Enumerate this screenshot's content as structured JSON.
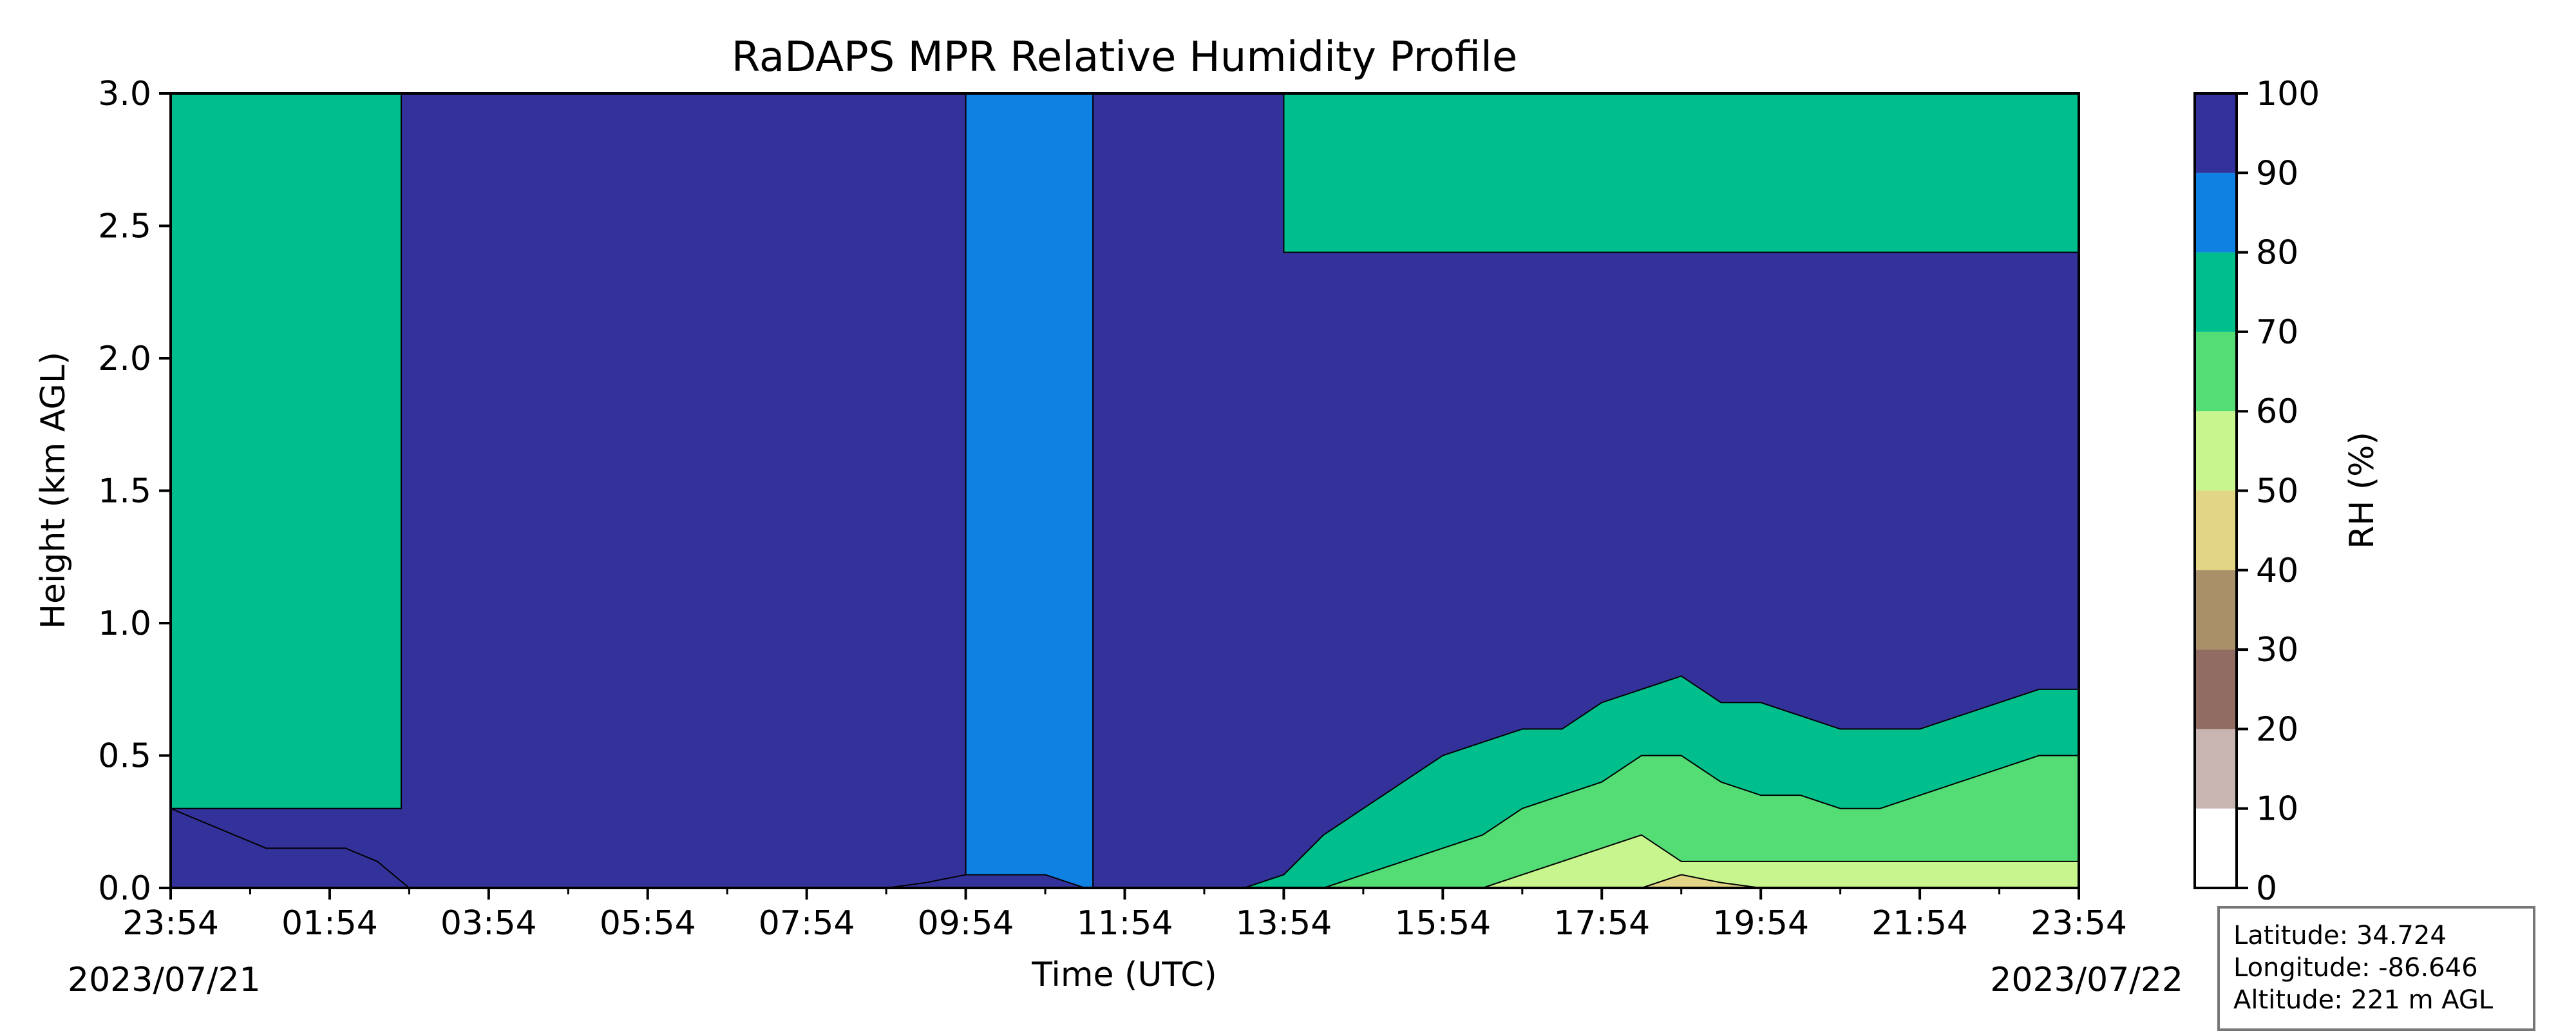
{
  "chart_data": {
    "type": "heatmap",
    "title": "RaDAPS MPR Relative Humidity Profile",
    "xlabel": "Time (UTC)",
    "ylabel": "Height (km AGL)",
    "x_tick_labels": [
      "23:54",
      "01:54",
      "03:54",
      "05:54",
      "07:54",
      "09:54",
      "11:54",
      "13:54",
      "15:54",
      "17:54",
      "19:54",
      "21:54",
      "23:54"
    ],
    "start_date": "2023/07/21",
    "end_date": "2023/07/22",
    "ylim": [
      0,
      3.0
    ],
    "y_ticks": [
      0.0,
      0.5,
      1.0,
      1.5,
      2.0,
      2.5,
      3.0
    ],
    "y_tick_labels": [
      "0.0",
      "0.5",
      "1.0",
      "1.5",
      "2.0",
      "2.5",
      "3.0"
    ],
    "colorbar": {
      "label": "RH (%)",
      "levels": [
        0,
        10,
        20,
        30,
        40,
        50,
        60,
        70,
        80,
        90,
        100
      ],
      "tick_labels": [
        "0",
        "10",
        "20",
        "30",
        "40",
        "50",
        "60",
        "70",
        "80",
        "90",
        "100"
      ],
      "colors": [
        "#ffffff",
        "#c8b4b0",
        "#906c62",
        "#aa9069",
        "#e2d586",
        "#c9f58e",
        "#54dc75",
        "#00bf8c",
        "#0e81e2",
        "#33329a"
      ]
    },
    "x_hours": [
      0,
      0.8,
      1.2,
      1.6,
      2.2,
      2.6,
      3.0,
      3.5,
      4.0,
      5.0,
      6.0,
      7.0,
      8.0,
      9.0,
      9.5,
      10.0,
      10.5,
      11.0,
      11.5,
      12.0,
      12.5,
      13.0,
      13.5,
      14.0,
      14.5,
      15.0,
      15.5,
      16.0,
      16.5,
      17.0,
      17.5,
      18.0,
      18.5,
      19.0,
      19.5,
      20.0,
      20.5,
      21.0,
      21.5,
      22.0,
      22.5,
      23.0,
      23.5,
      24.0
    ],
    "series": [
      {
        "values": [
          0.3,
          0.2,
          0.15,
          0.15,
          0.15,
          0.1,
          0.0,
          0,
          0,
          0,
          0,
          0,
          0,
          0,
          0.02,
          0.05,
          0.05,
          0.05,
          0,
          0,
          0,
          0,
          0,
          0,
          0,
          0,
          0,
          0,
          0,
          0,
          0,
          0,
          0,
          0,
          0,
          0,
          0,
          0,
          0,
          0,
          0,
          0,
          0,
          0
        ]
      },
      {
        "values": [
          0,
          0,
          0,
          0,
          0,
          0,
          0,
          0,
          0,
          0,
          0,
          0,
          0,
          0,
          0,
          0,
          0,
          0,
          0,
          0,
          0,
          0,
          0,
          0.05,
          0.2,
          0.3,
          0.4,
          0.5,
          0.55,
          0.6,
          0.6,
          0.7,
          0.75,
          0.8,
          0.7,
          0.7,
          0.65,
          0.6,
          0.6,
          0.6,
          0.65,
          0.7,
          0.75,
          0.75
        ]
      },
      {
        "values": [
          0,
          0,
          0,
          0,
          0,
          0,
          0,
          0,
          0,
          0,
          0,
          0,
          0,
          0,
          0,
          0,
          0,
          0,
          0,
          0,
          0,
          0,
          0,
          0,
          0,
          0.05,
          0.1,
          0.15,
          0.2,
          0.3,
          0.35,
          0.4,
          0.5,
          0.5,
          0.4,
          0.35,
          0.35,
          0.3,
          0.3,
          0.35,
          0.4,
          0.45,
          0.5,
          0.5
        ]
      },
      {
        "values": [
          0,
          0,
          0,
          0,
          0,
          0,
          0,
          0,
          0,
          0,
          0,
          0,
          0,
          0,
          0,
          0,
          0,
          0,
          0,
          0,
          0,
          0,
          0,
          0,
          0,
          0,
          0,
          0,
          0,
          0.05,
          0.1,
          0.15,
          0.2,
          0.1,
          0.1,
          0.1,
          0.1,
          0.1,
          0.1,
          0.1,
          0.1,
          0.1,
          0.1,
          0.1
        ]
      },
      {
        "values": [
          0,
          0,
          0,
          0,
          0,
          0,
          0,
          0,
          0,
          0,
          0,
          0,
          0,
          0,
          0,
          0,
          0,
          0,
          0,
          0,
          0,
          0,
          0,
          0,
          0,
          0,
          0,
          0,
          0,
          0,
          0,
          0,
          0,
          0.05,
          0.02,
          0,
          0,
          0,
          0,
          0,
          0,
          0,
          0,
          0
        ]
      }
    ],
    "regions": [
      {
        "name": "green-column",
        "hours": [
          0,
          2.9
        ],
        "heights": [
          0.3,
          3.0
        ],
        "rh_class": 70
      },
      {
        "name": "dry-top-right",
        "hours": [
          14.0,
          24.0
        ],
        "heights": [
          2.4,
          3.0
        ],
        "rh_class": 70
      },
      {
        "name": "cloud-column",
        "hours": [
          10.0,
          11.6
        ],
        "heights": [
          0.0,
          3.0
        ],
        "rh_class": 80
      }
    ],
    "info_box": {
      "latitude": "Latitude: 34.724",
      "longitude": "Longitude: -86.646",
      "altitude": "Altitude: 221 m AGL"
    }
  }
}
